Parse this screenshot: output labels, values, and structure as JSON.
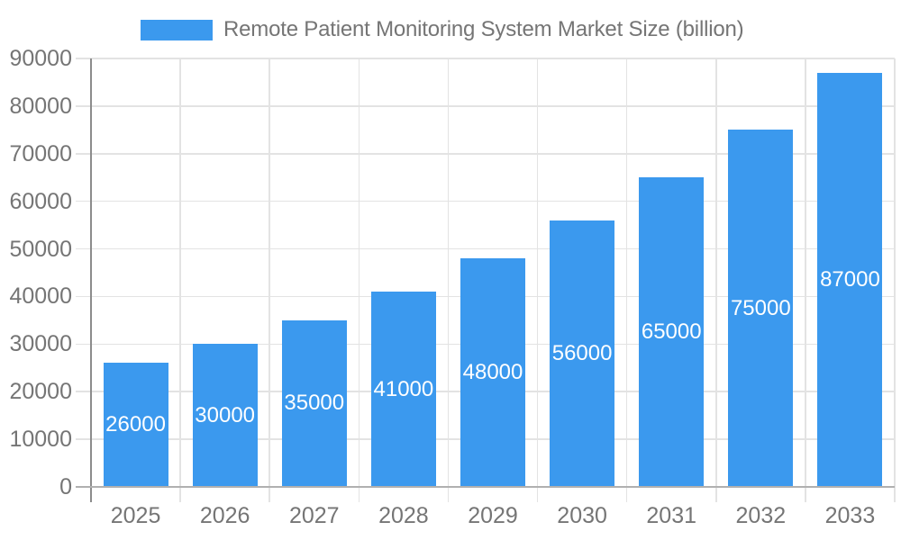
{
  "page": {
    "background": "#FFFFFF"
  },
  "legend": {
    "label": "Remote Patient Monitoring System Market Size (billion)",
    "swatch_color": "#3B99EE",
    "text_color": "#757575"
  },
  "chart_data": {
    "type": "bar",
    "title": "Remote Patient Monitoring System Market Size (billion)",
    "series_name": "Remote Patient Monitoring System Market Size (billion)",
    "categories": [
      "2025",
      "2026",
      "2027",
      "2028",
      "2029",
      "2030",
      "2031",
      "2032",
      "2033"
    ],
    "values": [
      26000,
      30000,
      35000,
      41000,
      48000,
      56000,
      65000,
      75000,
      87000
    ],
    "value_label_texts": [
      "26000",
      "30000",
      "35000",
      "41000",
      "48000",
      "56000",
      "65000",
      "75000",
      "87000"
    ],
    "xlabel": "",
    "ylabel": "",
    "ylim": [
      0,
      90000
    ],
    "ytick_step": 10000,
    "yticks": [
      0,
      10000,
      20000,
      30000,
      40000,
      50000,
      60000,
      70000,
      80000,
      90000
    ],
    "grid": true,
    "legend_position": "top",
    "value_labels_position": "inside-center",
    "colors": {
      "bar": "#3B99EE",
      "value_label": "#FFFFFF",
      "axis_text": "#757575",
      "gridline": "#E3E3E3",
      "x_axis_line": "#B0B0B0",
      "y_axis_line": "#8C8C8C"
    }
  }
}
